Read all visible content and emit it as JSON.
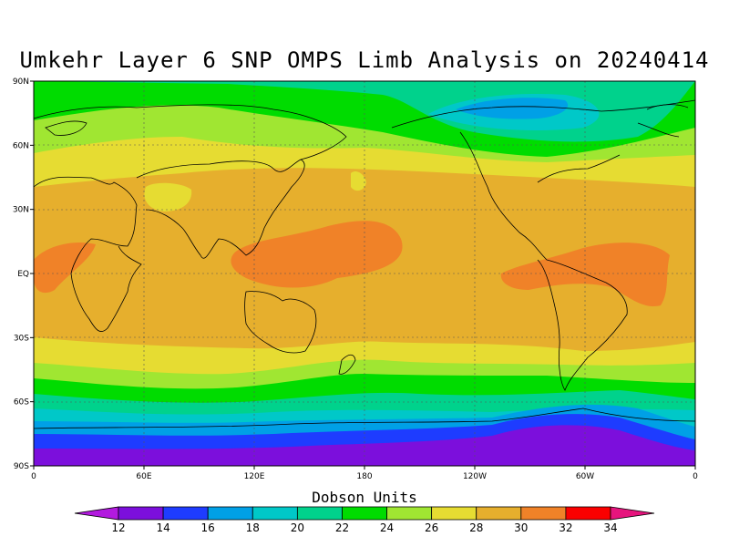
{
  "title": "Umkehr Layer 6 SNP OMPS Limb Analysis on 20240414",
  "colorbar": {
    "title": "Dobson Units",
    "labels": [
      "12",
      "14",
      "16",
      "18",
      "20",
      "22",
      "24",
      "26",
      "28",
      "30",
      "32",
      "34"
    ],
    "colors": [
      "#b21adf",
      "#7c0fdc",
      "#1e3cff",
      "#00a0e6",
      "#00c8c8",
      "#00d28c",
      "#00dc00",
      "#a0e632",
      "#e6dc32",
      "#e6af2d",
      "#f08228",
      "#fa0000",
      "#e6147d"
    ]
  },
  "axes": {
    "x_labels": [
      "0",
      "60E",
      "120E",
      "180",
      "120W",
      "60W",
      "0"
    ],
    "y_labels": [
      "90N",
      "60N",
      "30N",
      "EQ",
      "30S",
      "60S",
      "90S"
    ]
  }
}
